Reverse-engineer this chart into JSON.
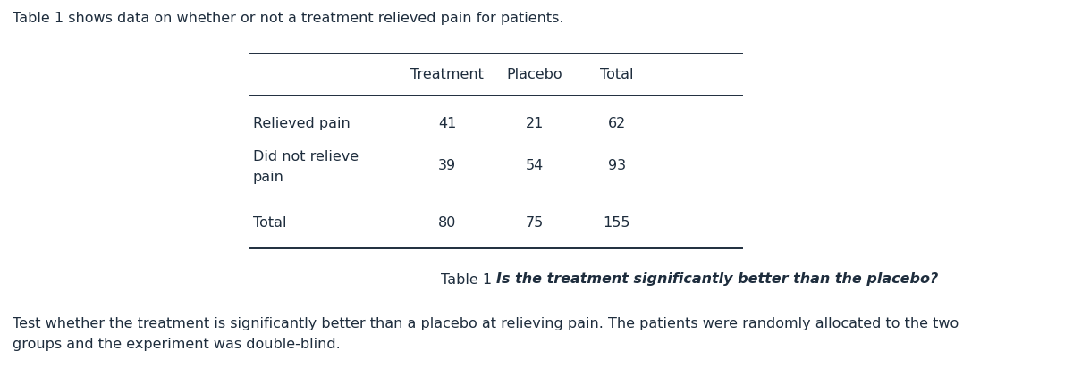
{
  "intro_text": "Table 1 shows data on whether or not a treatment relieved pain for patients.",
  "caption_bold": "Table 1 ",
  "caption_italic": "Is the treatment significantly better than the placebo?",
  "body_line1": "Test whether the treatment is significantly better than a placebo at relieving pain. The patients were randomly allocated to the two",
  "body_line2": "groups and the experiment was double-blind.",
  "col_headers": [
    "Treatment",
    "Placebo",
    "Total"
  ],
  "rows": [
    [
      "Relieved pain",
      "41",
      "21",
      "62"
    ],
    [
      "Did not relieve\npain",
      "39",
      "54",
      "93"
    ],
    [
      "Total",
      "80",
      "75",
      "155"
    ]
  ],
  "text_color": "#1e2d3d",
  "background_color": "#ffffff",
  "font_size": 11.5
}
